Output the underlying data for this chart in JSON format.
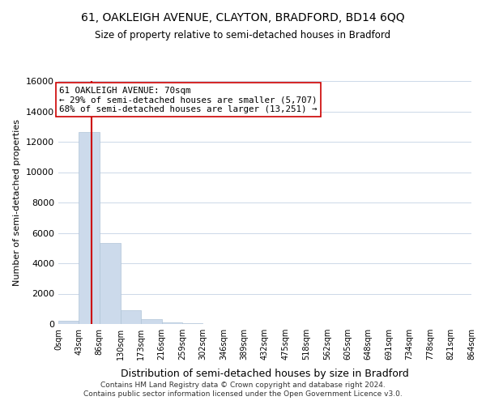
{
  "title": "61, OAKLEIGH AVENUE, CLAYTON, BRADFORD, BD14 6QQ",
  "subtitle": "Size of property relative to semi-detached houses in Bradford",
  "xlabel": "Distribution of semi-detached houses by size in Bradford",
  "ylabel": "Number of semi-detached properties",
  "bar_edges": [
    0,
    43,
    86,
    130,
    173,
    216,
    259,
    302,
    346,
    389,
    432,
    475,
    518,
    562,
    605,
    648,
    691,
    734,
    778,
    821,
    864
  ],
  "bar_heights": [
    200,
    12650,
    5350,
    900,
    300,
    100,
    50,
    0,
    0,
    0,
    0,
    0,
    0,
    0,
    0,
    0,
    0,
    0,
    0,
    0
  ],
  "bar_color": "#ccdaeb",
  "bar_edgecolor": "#b0c4d8",
  "property_line_x": 70,
  "property_line_color": "#cc0000",
  "ylim": [
    0,
    16000
  ],
  "yticks": [
    0,
    2000,
    4000,
    6000,
    8000,
    10000,
    12000,
    14000,
    16000
  ],
  "xtick_labels": [
    "0sqm",
    "43sqm",
    "86sqm",
    "130sqm",
    "173sqm",
    "216sqm",
    "259sqm",
    "302sqm",
    "346sqm",
    "389sqm",
    "432sqm",
    "475sqm",
    "518sqm",
    "562sqm",
    "605sqm",
    "648sqm",
    "691sqm",
    "734sqm",
    "778sqm",
    "821sqm",
    "864sqm"
  ],
  "annotation_title": "61 OAKLEIGH AVENUE: 70sqm",
  "annotation_line1": "← 29% of semi-detached houses are smaller (5,707)",
  "annotation_line2": "68% of semi-detached houses are larger (13,251) →",
  "annotation_box_color": "#ffffff",
  "annotation_box_edgecolor": "#cc0000",
  "footer1": "Contains HM Land Registry data © Crown copyright and database right 2024.",
  "footer2": "Contains public sector information licensed under the Open Government Licence v3.0.",
  "background_color": "#ffffff",
  "grid_color": "#ccd8e8"
}
